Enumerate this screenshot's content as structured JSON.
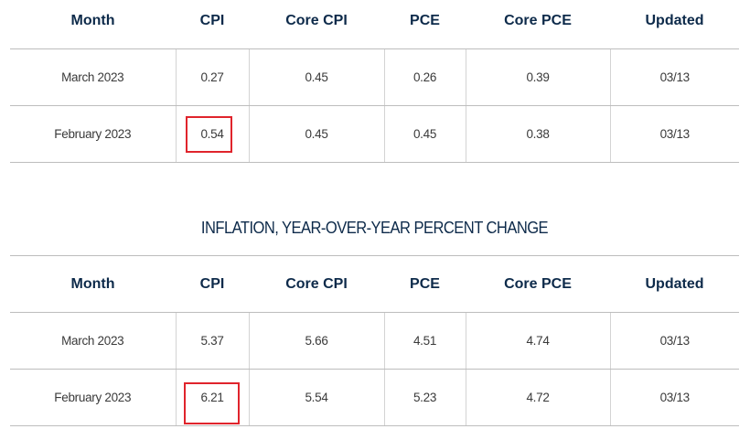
{
  "columns": [
    "Month",
    "CPI",
    "Core CPI",
    "PCE",
    "Core PCE",
    "Updated"
  ],
  "monthly_table": {
    "rows": [
      [
        "March 2023",
        "0.27",
        "0.45",
        "0.26",
        "0.39",
        "03/13"
      ],
      [
        "February 2023",
        "0.54",
        "0.45",
        "0.45",
        "0.38",
        "03/13"
      ]
    ]
  },
  "yoy_table": {
    "title": "INFLATION, YEAR-OVER-YEAR PERCENT CHANGE",
    "rows": [
      [
        "March 2023",
        "5.37",
        "5.66",
        "4.51",
        "4.74",
        "03/13"
      ],
      [
        "February 2023",
        "6.21",
        "5.54",
        "5.23",
        "4.72",
        "03/13"
      ]
    ]
  },
  "highlight_color": "#e0242c",
  "header_color": "#0d2a4a"
}
